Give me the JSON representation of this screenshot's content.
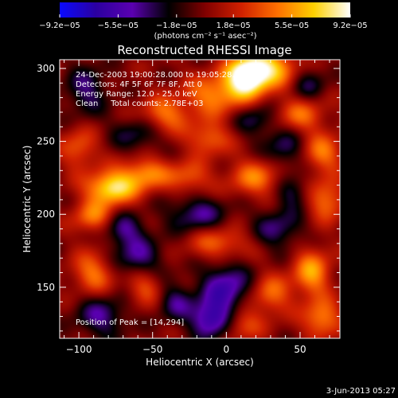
{
  "chart_data": {
    "type": "heatmap",
    "title": "Reconstructed RHESSI Image",
    "xlabel": "Heliocentric X (arcsec)",
    "ylabel": "Heliocentric Y (arcsec)",
    "xlim": [
      -113,
      77
    ],
    "ylim": [
      115,
      306
    ],
    "xticks": [
      {
        "value": -100,
        "label": "−100"
      },
      {
        "value": -50,
        "label": "−50"
      },
      {
        "value": 0,
        "label": "0"
      },
      {
        "value": 50,
        "label": "50"
      }
    ],
    "yticks": [
      {
        "value": 150,
        "label": "150"
      },
      {
        "value": 200,
        "label": "200"
      },
      {
        "value": 250,
        "label": "250"
      },
      {
        "value": 300,
        "label": "300"
      }
    ],
    "colorbar": {
      "min": -9.2e-05,
      "max": 9.2e-05,
      "ticks": [
        {
          "value": -9.2e-05,
          "label": "−9.2e−05"
        },
        {
          "value": -5.5e-05,
          "label": "−5.5e−05"
        },
        {
          "value": -1.8e-05,
          "label": "−1.8e−05"
        },
        {
          "value": 1.8e-05,
          "label": "1.8e−05"
        },
        {
          "value": 5.5e-05,
          "label": "5.5e−05"
        },
        {
          "value": 9.2e-05,
          "label": "9.2e−05"
        }
      ],
      "unit_label": "(photons cm⁻² s⁻¹ asec⁻²)",
      "colors": [
        "#0a0aff",
        "#2b00a0",
        "#5a00b0",
        "#000000",
        "#800000",
        "#d02000",
        "#ff7000",
        "#ffd000",
        "#ffffff"
      ]
    },
    "annotations": [
      "24-Dec-2003 19:00:28.000 to 19:05:28.000",
      "Detectors: 4F 5F 6F 7F 8F, Att 0",
      "Energy Range: 12.0 - 25.0 keV",
      "Clean     Total counts: 2.78E+03"
    ],
    "peak_label": "Position of Peak = [14,294]",
    "peak": [
      14,
      294
    ],
    "blobs": [
      {
        "x": 14,
        "y": 294,
        "a": 1.0,
        "sx": 10,
        "sy": 10
      },
      {
        "x": 30,
        "y": 300,
        "a": 0.7,
        "sx": 14,
        "sy": 9
      },
      {
        "x": -8,
        "y": 282,
        "a": 0.55,
        "sx": 14,
        "sy": 10
      },
      {
        "x": -78,
        "y": 218,
        "a": 0.85,
        "sx": 12,
        "sy": 8
      },
      {
        "x": -55,
        "y": 228,
        "a": 0.55,
        "sx": 12,
        "sy": 8
      },
      {
        "x": -90,
        "y": 198,
        "a": 0.5,
        "sx": 10,
        "sy": 8
      },
      {
        "x": -42,
        "y": 268,
        "a": 0.5,
        "sx": 12,
        "sy": 9
      },
      {
        "x": -12,
        "y": 252,
        "a": 0.45,
        "sx": 10,
        "sy": 8
      },
      {
        "x": 50,
        "y": 268,
        "a": 0.45,
        "sx": 12,
        "sy": 9
      },
      {
        "x": 65,
        "y": 242,
        "a": 0.5,
        "sx": 10,
        "sy": 9
      },
      {
        "x": 68,
        "y": 210,
        "a": 0.5,
        "sx": 9,
        "sy": 10
      },
      {
        "x": 58,
        "y": 160,
        "a": 0.6,
        "sx": 9,
        "sy": 12
      },
      {
        "x": 65,
        "y": 128,
        "a": 0.55,
        "sx": 9,
        "sy": 9
      },
      {
        "x": 30,
        "y": 145,
        "a": 0.45,
        "sx": 10,
        "sy": 10
      },
      {
        "x": -5,
        "y": 180,
        "a": 0.45,
        "sx": 14,
        "sy": 8
      },
      {
        "x": -90,
        "y": 160,
        "a": 0.5,
        "sx": 10,
        "sy": 10
      },
      {
        "x": -55,
        "y": 150,
        "a": 0.4,
        "sx": 9,
        "sy": 9
      },
      {
        "x": 20,
        "y": 225,
        "a": 0.5,
        "sx": 13,
        "sy": 9
      },
      {
        "x": -25,
        "y": 225,
        "a": 0.4,
        "sx": 10,
        "sy": 8
      },
      {
        "x": -100,
        "y": 245,
        "a": 0.4,
        "sx": 9,
        "sy": 10
      },
      {
        "x": 10,
        "y": 125,
        "a": 0.4,
        "sx": 10,
        "sy": 8
      },
      {
        "x": -70,
        "y": 190,
        "a": -0.45,
        "sx": 10,
        "sy": 8
      },
      {
        "x": -20,
        "y": 200,
        "a": -0.45,
        "sx": 14,
        "sy": 9
      },
      {
        "x": 35,
        "y": 190,
        "a": -0.4,
        "sx": 12,
        "sy": 10
      },
      {
        "x": 0,
        "y": 150,
        "a": -0.6,
        "sx": 12,
        "sy": 12
      },
      {
        "x": -10,
        "y": 128,
        "a": -0.7,
        "sx": 10,
        "sy": 9
      },
      {
        "x": -60,
        "y": 170,
        "a": -0.45,
        "sx": 12,
        "sy": 10
      },
      {
        "x": -85,
        "y": 130,
        "a": -0.45,
        "sx": 12,
        "sy": 10
      },
      {
        "x": 40,
        "y": 245,
        "a": -0.4,
        "sx": 10,
        "sy": 10
      },
      {
        "x": -60,
        "y": 255,
        "a": -0.35,
        "sx": 12,
        "sy": 9
      },
      {
        "x": 20,
        "y": 265,
        "a": -0.35,
        "sx": 10,
        "sy": 8
      },
      {
        "x": -95,
        "y": 285,
        "a": -0.4,
        "sx": 10,
        "sy": 12
      },
      {
        "x": 55,
        "y": 290,
        "a": -0.35,
        "sx": 9,
        "sy": 9
      },
      {
        "x": 45,
        "y": 215,
        "a": -0.35,
        "sx": 8,
        "sy": 8
      },
      {
        "x": -35,
        "y": 140,
        "a": -0.4,
        "sx": 9,
        "sy": 9
      }
    ]
  },
  "footer": {
    "date": "3-Jun-2013 05:27"
  }
}
